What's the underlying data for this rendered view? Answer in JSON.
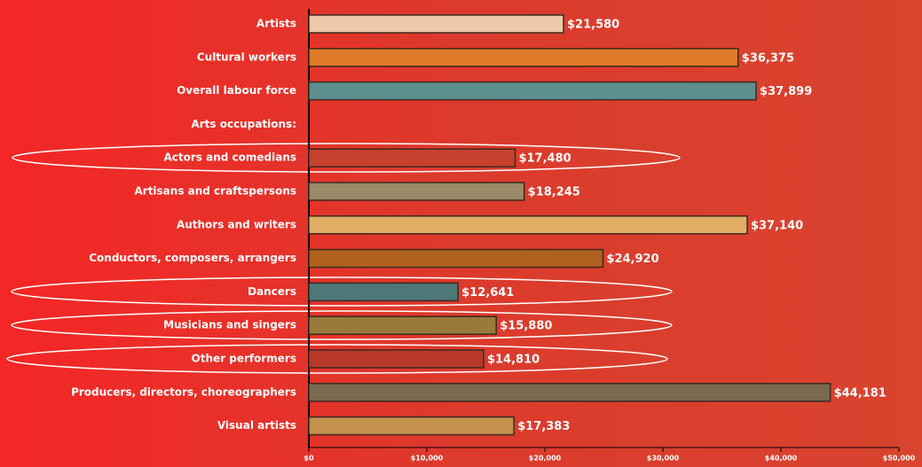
{
  "chart_data": {
    "type": "bar",
    "orientation": "horizontal",
    "categories": [
      "Artists",
      "Cultural workers",
      "Overall labour force",
      "Arts occupations:",
      "Actors and comedians",
      "Artisans and craftspersons",
      "Authors and writers",
      "Conductors, composers, arrangers",
      "Dancers",
      "Musicians and singers",
      "Other performers",
      "Producers, directors, choreographers",
      "Visual artists"
    ],
    "values": [
      21580,
      36375,
      37899,
      null,
      17480,
      18245,
      37140,
      24920,
      12641,
      15880,
      14810,
      44181,
      17383
    ],
    "value_labels": [
      "$21,580",
      "$36,375",
      "$37,899",
      null,
      "$17,480",
      "$18,245",
      "$37,140",
      "$24,920",
      "$12,641",
      "$15,880",
      "$14,810",
      "$44,181",
      "$17,383"
    ],
    "colors": [
      "#ecc9a8",
      "#e07a28",
      "#5e9090",
      null,
      "#c8402e",
      "#998a68",
      "#e2ae66",
      "#b0601e",
      "#4e7878",
      "#9a7a3a",
      "#b83828",
      "#7a6a50",
      "#c4904e"
    ],
    "xlim": [
      0,
      50000
    ],
    "xticks": [
      {
        "value": 0,
        "label": "$0"
      },
      {
        "value": 10000,
        "label": "$10,000"
      },
      {
        "value": 20000,
        "label": "$20,000"
      },
      {
        "value": 30000,
        "label": "$30,000"
      },
      {
        "value": 40000,
        "label": "$40,000"
      },
      {
        "value": 50000,
        "label": "$50,000"
      }
    ]
  }
}
